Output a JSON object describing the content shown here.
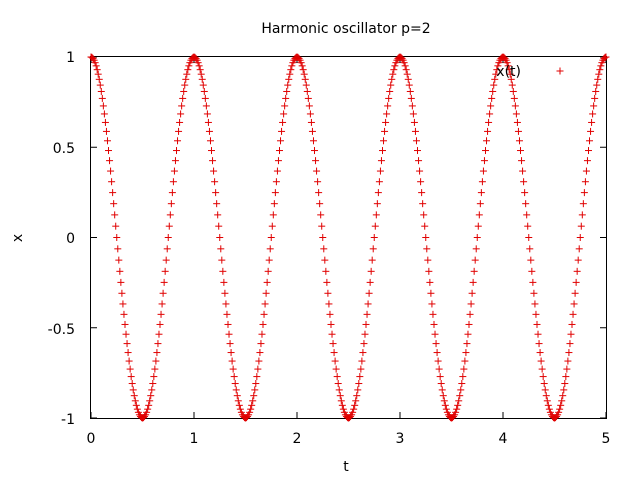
{
  "chart_data": {
    "type": "scatter",
    "title": "Harmonic oscillator p=2",
    "xlabel": "t",
    "ylabel": "x",
    "xlim": [
      0,
      5
    ],
    "ylim": [
      -1,
      1
    ],
    "xticks": [
      "0",
      "1",
      "2",
      "3",
      "4",
      "5"
    ],
    "yticks": [
      "1",
      "0.5",
      "0",
      "-0.5",
      "-1"
    ],
    "grid": false,
    "legend_position": "top-right",
    "marker": "plus",
    "series": [
      {
        "name": "x(t)",
        "color": "#e00000",
        "function": "cos(2*pi*t)",
        "t_start": 0,
        "t_end": 5,
        "t_step": 0.01
      }
    ]
  }
}
